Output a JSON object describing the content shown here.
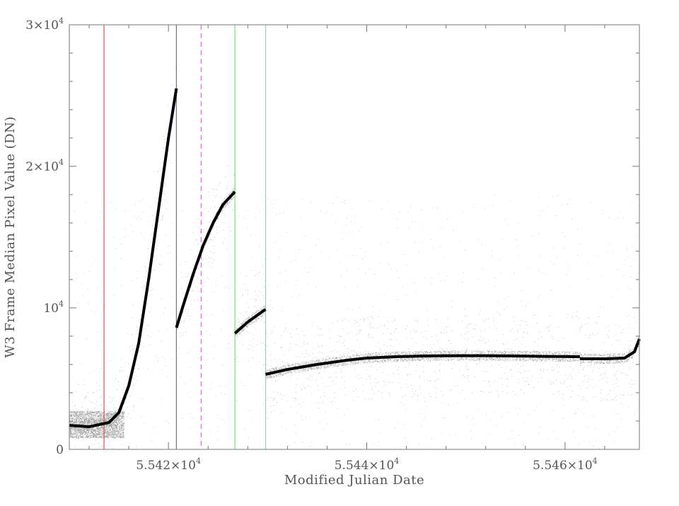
{
  "chart_data": {
    "type": "scatter",
    "title": "",
    "xlabel": "Modified Julian Date",
    "ylabel": "W3 Frame Median Pixel Value (DN)",
    "xlim": [
      55410.0,
      55467.5
    ],
    "ylim": [
      0,
      30000
    ],
    "grid": false,
    "x_ticks": [
      {
        "value": 55420,
        "label": "5.542×10",
        "exp": "4"
      },
      {
        "value": 55440,
        "label": "5.544×10",
        "exp": "4"
      },
      {
        "value": 55460,
        "label": "5.546×10",
        "exp": "4"
      }
    ],
    "y_ticks": [
      {
        "value": 0,
        "label": "0",
        "exp": ""
      },
      {
        "value": 10000,
        "label": "10",
        "exp": "4"
      },
      {
        "value": 20000,
        "label": "2×10",
        "exp": "4"
      },
      {
        "value": 30000,
        "label": "3×10",
        "exp": "4"
      }
    ],
    "vertical_lines": [
      {
        "x": 55413.5,
        "color": "#e8455a",
        "style": "solid"
      },
      {
        "x": 55420.8,
        "color": "#6a6ab8",
        "style": "solid"
      },
      {
        "x": 55423.3,
        "color": "#d070d8",
        "style": "dashed"
      },
      {
        "x": 55426.7,
        "color": "#7ae07a",
        "style": "solid"
      },
      {
        "x": 55429.8,
        "color": "#6ae0e0",
        "style": "solid"
      }
    ],
    "series": [
      {
        "color": "#000000",
        "x": [
          55410.0,
          55412.0,
          55414.0,
          55415.0,
          55416.0,
          55417.0,
          55418.0,
          55419.0,
          55420.0,
          55420.8
        ],
        "y": [
          1700,
          1600,
          1900,
          2600,
          4500,
          7500,
          12000,
          17000,
          22000,
          25500
        ]
      },
      {
        "color": "#000000",
        "x": [
          55420.8,
          55421.5,
          55422.5,
          55423.5,
          55424.5,
          55425.5,
          55426.7
        ],
        "y": [
          8600,
          10200,
          12400,
          14400,
          16000,
          17300,
          18200
        ]
      },
      {
        "color": "#000000",
        "x": [
          55426.7,
          55428.0,
          55429.8
        ],
        "y": [
          8200,
          9000,
          9900
        ]
      },
      {
        "color": "#000000",
        "x": [
          55429.8,
          55432.0,
          55435.0,
          55438.0,
          55440.0,
          55443.0,
          55446.0,
          55449.0,
          55452.0,
          55455.0,
          55458.0,
          55461.5
        ],
        "y": [
          5300,
          5650,
          6000,
          6300,
          6450,
          6550,
          6600,
          6620,
          6620,
          6600,
          6570,
          6550
        ]
      },
      {
        "color": "#000000",
        "x": [
          55461.5,
          55464.0,
          55466.0,
          55467.0,
          55467.5
        ],
        "y": [
          6400,
          6400,
          6450,
          6900,
          7800
        ]
      }
    ]
  }
}
